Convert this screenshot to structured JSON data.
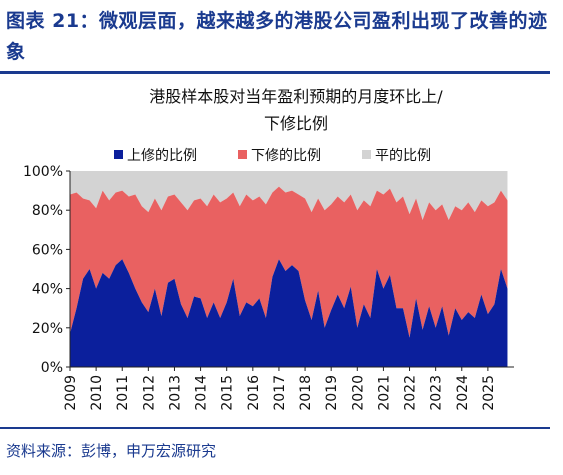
{
  "figure_title": "图表 21：微观层面，越来越多的港股公司盈利出现了改善的迹象",
  "source": "资料来源：彭博，申万宏源研究",
  "colors": {
    "up": "#0b1f9c",
    "down": "#e96161",
    "flat": "#d3d3d3",
    "heading": "#1a3a8f"
  },
  "chart_data": {
    "type": "area",
    "stacked": true,
    "title_line1": "港股样本股对当年盈利预期的月度环比上/",
    "title_line2": "下修比例",
    "legend_position": "top",
    "y_ticks": [
      "0%",
      "20%",
      "40%",
      "60%",
      "80%",
      "100%"
    ],
    "ylim": [
      0,
      100
    ],
    "xlim": [
      2009,
      2026
    ],
    "x_ticks": [
      "2009",
      "2010",
      "2011",
      "2012",
      "2013",
      "2014",
      "2015",
      "2016",
      "2017",
      "2018",
      "2019",
      "2020",
      "2021",
      "2022",
      "2023",
      "2024",
      "2025"
    ],
    "series": [
      {
        "name": "上修的比例",
        "key": "up"
      },
      {
        "name": "下修的比例",
        "key": "down"
      },
      {
        "name": "平的比例",
        "key": "flat"
      }
    ],
    "x": [
      2009.0,
      2009.25,
      2009.5,
      2009.75,
      2010.0,
      2010.25,
      2010.5,
      2010.75,
      2011.0,
      2011.25,
      2011.5,
      2011.75,
      2012.0,
      2012.25,
      2012.5,
      2012.75,
      2013.0,
      2013.25,
      2013.5,
      2013.75,
      2014.0,
      2014.25,
      2014.5,
      2014.75,
      2015.0,
      2015.25,
      2015.5,
      2015.75,
      2016.0,
      2016.25,
      2016.5,
      2016.75,
      2017.0,
      2017.25,
      2017.5,
      2017.75,
      2018.0,
      2018.25,
      2018.5,
      2018.75,
      2019.0,
      2019.25,
      2019.5,
      2019.75,
      2020.0,
      2020.25,
      2020.5,
      2020.75,
      2021.0,
      2021.25,
      2021.5,
      2021.75,
      2022.0,
      2022.25,
      2022.5,
      2022.75,
      2023.0,
      2023.25,
      2023.5,
      2023.75,
      2024.0,
      2024.25,
      2024.5,
      2024.75,
      2025.0,
      2025.25,
      2025.5,
      2025.75
    ],
    "up": [
      17,
      30,
      45,
      50,
      40,
      48,
      45,
      52,
      55,
      48,
      40,
      33,
      28,
      40,
      26,
      43,
      45,
      32,
      25,
      36,
      35,
      25,
      33,
      25,
      33,
      45,
      26,
      33,
      31,
      35,
      25,
      46,
      55,
      49,
      52,
      49,
      34,
      24,
      39,
      20,
      29,
      37,
      30,
      41,
      20,
      32,
      25,
      50,
      40,
      47,
      30,
      30,
      15,
      35,
      19,
      31,
      20,
      31,
      16,
      30,
      24,
      28,
      25,
      37,
      27,
      32,
      50,
      40
    ],
    "upper": [
      88,
      89,
      86,
      85,
      81,
      90,
      85,
      89,
      90,
      87,
      88,
      82,
      79,
      86,
      80,
      87,
      88,
      84,
      80,
      85,
      86,
      82,
      88,
      84,
      86,
      89,
      82,
      88,
      85,
      87,
      83,
      89,
      92,
      89,
      90,
      88,
      86,
      79,
      86,
      80,
      83,
      87,
      84,
      88,
      80,
      85,
      82,
      90,
      88,
      91,
      84,
      87,
      78,
      86,
      75,
      84,
      80,
      83,
      75,
      82,
      80,
      84,
      79,
      85,
      82,
      84,
      90,
      85
    ]
  }
}
